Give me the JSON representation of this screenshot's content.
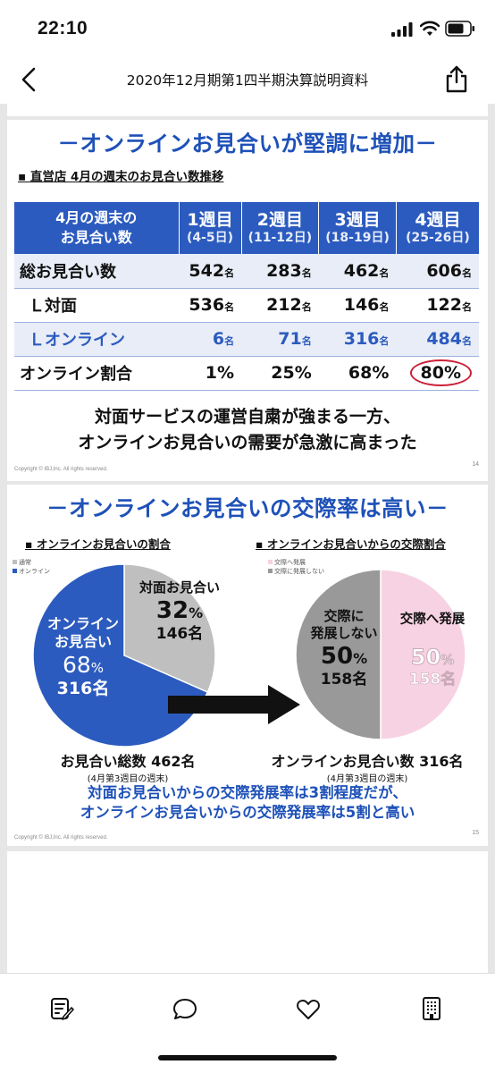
{
  "status": {
    "time": "22:10"
  },
  "nav": {
    "title": "2020年12月期第1四半期決算説明資料"
  },
  "slide14": {
    "heading": "－オンラインお見合いが堅調に増加－",
    "subheading": "▪ 直営店 4月の週末のお見合い数推移",
    "table": {
      "row_header": [
        "4月の週末の",
        "お見合い数"
      ],
      "columns": [
        {
          "week": "1週目",
          "dates": "(4-5日)"
        },
        {
          "week": "2週目",
          "dates": "(11-12日)"
        },
        {
          "week": "3週目",
          "dates": "(18-19日)"
        },
        {
          "week": "4週目",
          "dates": "(25-26日)"
        }
      ],
      "unit": "名",
      "rows": [
        {
          "label": "総お見合い数",
          "values": [
            "542",
            "283",
            "462",
            "606"
          ]
        },
        {
          "label": "Ｌ対面",
          "values": [
            "536",
            "212",
            "146",
            "122"
          ]
        },
        {
          "label": "Ｌオンライン",
          "values": [
            "6",
            "71",
            "316",
            "484"
          ]
        },
        {
          "label": "オンライン割合",
          "values": [
            "1%",
            "25%",
            "68%",
            "80%"
          ]
        }
      ]
    },
    "message": [
      "対面サービスの運営自粛が強まる一方、",
      "オンラインお見合いの需要が急激に高まった"
    ],
    "copyright": "Copyright © IBJ,Inc. All rights reserved.",
    "page": "14"
  },
  "slide15": {
    "heading": "－オンラインお見合いの交際率は高い－",
    "left_title": "▪ オンラインお見合いの割合",
    "right_title": "▪ オンラインお見合いからの交際割合",
    "left_legend": [
      "通常",
      "オンライン"
    ],
    "right_legend": [
      "交際へ発展",
      "交際に発展しない"
    ],
    "left_labels": {
      "offline_name": "対面お見合い",
      "offline_pct": "32",
      "offline_count": "146名",
      "online_name": [
        "オンライン",
        "お見合い"
      ],
      "online_pct": "68",
      "online_count": "316名",
      "pct_sign": "%"
    },
    "right_labels": {
      "no_name": [
        "交際に",
        "発展しない"
      ],
      "no_pct": "50",
      "no_count": "158名",
      "yes_name": "交際へ発展",
      "yes_pct": "50",
      "yes_count": "158名",
      "pct_sign": "%"
    },
    "left_total": "お見合い総数 462名",
    "left_total_note": "(4月第3週目の週末)",
    "right_total": "オンラインお見合い数 316名",
    "right_total_note": "(4月第3週目の週末)",
    "message": [
      "対面お見合いからの交際発展率は3割程度だが、",
      "オンラインお見合いからの交際発展率は5割と高い"
    ],
    "copyright": "Copyright © IBJ,Inc. All rights reserved.",
    "page": "15"
  },
  "chart_data": [
    {
      "type": "pie",
      "title": "オンラインお見合いの割合",
      "labels": [
        "オンラインお見合い",
        "対面お見合い"
      ],
      "values": [
        316,
        146
      ],
      "percent": [
        68,
        32
      ],
      "colors": [
        "#2c5bbf",
        "#bfbfbf"
      ]
    },
    {
      "type": "pie",
      "title": "オンラインお見合いからの交際割合",
      "labels": [
        "交際に発展しない",
        "交際へ発展"
      ],
      "values": [
        158,
        158
      ],
      "percent": [
        50,
        50
      ],
      "colors": [
        "#999999",
        "#f7d2e2"
      ]
    }
  ],
  "colors": {
    "accent": "#1e51b8",
    "table_header": "#2c5bbf",
    "highlight_circle": "#cc2038"
  }
}
